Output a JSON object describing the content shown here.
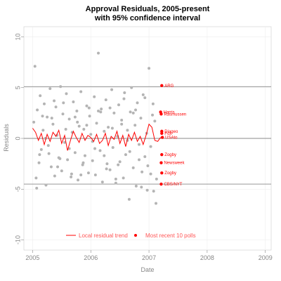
{
  "chart_data": {
    "type": "scatter",
    "title": "Approval Residuals, 2005-present",
    "subtitle": "with 95% confidence interval",
    "xlabel": "Date",
    "ylabel": "Residuals",
    "xlim": [
      2004.85,
      2009.1
    ],
    "ylim": [
      -11,
      11
    ],
    "x_ticks": [
      "2005",
      "2006",
      "2007",
      "2008",
      "2009"
    ],
    "y_ticks": [
      "10",
      "5",
      "0",
      "-5",
      "-10"
    ],
    "x_tick_values": [
      2005,
      2006,
      2007,
      2008,
      2009
    ],
    "y_tick_values": [
      10,
      5,
      0,
      -5,
      -10
    ],
    "confidence_lines": [
      5.1,
      0,
      -4.5
    ],
    "grid": true,
    "legend": {
      "position": "bottom-center",
      "entries": [
        {
          "label": "Local residual trend",
          "color": "#ff0000",
          "kind": "line"
        },
        {
          "label": "Most recent 10 polls",
          "color": "#ff0000",
          "kind": "point"
        }
      ]
    },
    "colors": {
      "residual_points": "#b4b4b4",
      "recent": "#ff0000",
      "ci_lines": "#888888",
      "grid": "#eeeeee"
    },
    "series": [
      {
        "name": "Local residual trend",
        "type": "line",
        "x": [
          2005.0,
          2005.05,
          2005.1,
          2005.15,
          2005.2,
          2005.25,
          2005.3,
          2005.35,
          2005.4,
          2005.45,
          2005.5,
          2005.55,
          2005.6,
          2005.65,
          2005.7,
          2005.75,
          2005.8,
          2005.85,
          2005.9,
          2005.95,
          2006.0,
          2006.05,
          2006.1,
          2006.15,
          2006.2,
          2006.25,
          2006.3,
          2006.35,
          2006.4,
          2006.45,
          2006.5,
          2006.55,
          2006.6,
          2006.65,
          2006.7,
          2006.75,
          2006.8,
          2006.85,
          2006.9,
          2006.95,
          2007.0,
          2007.05,
          2007.1,
          2007.15,
          2007.2
        ],
        "values": [
          1.0,
          0.6,
          -0.2,
          0.5,
          -0.6,
          0.4,
          -0.3,
          0.6,
          0.2,
          0.8,
          -0.5,
          0.3,
          -1.2,
          -0.2,
          0.7,
          0.1,
          -0.4,
          0.5,
          -0.2,
          0.3,
          0.1,
          -0.3,
          0.4,
          -0.5,
          -0.2,
          0.5,
          -0.7,
          0.2,
          -0.1,
          0.7,
          -0.5,
          0.3,
          -0.8,
          0.4,
          -0.2,
          0.6,
          -0.3,
          0.2,
          -0.6,
          0.3,
          1.4,
          1.1,
          -0.2,
          -0.3,
          0.1
        ]
      },
      {
        "name": "Most recent 10 polls",
        "type": "scatter",
        "labels": [
          "ARG",
          "Harris",
          "Rasmussen",
          "Diageo",
          "USAto",
          "Zogby",
          "Newsweek",
          "Zogby",
          "CBS/NYT",
          "Fox"
        ],
        "x": [
          2007.22,
          2007.2,
          2007.21,
          2007.22,
          2007.23,
          2007.22,
          2007.21,
          2007.22,
          2007.21,
          2007.22
        ],
        "values": [
          5.2,
          2.6,
          2.4,
          0.7,
          0.1,
          -1.6,
          -2.4,
          -3.4,
          -4.5,
          0.5
        ]
      },
      {
        "name": "",
        "type": "scatter",
        "x": [
          2005.02,
          2005.04,
          2005.06,
          2005.08,
          2005.11,
          2005.13,
          2005.15,
          2005.18,
          2005.2,
          2005.23,
          2005.25,
          2005.27,
          2005.3,
          2005.32,
          2005.35,
          2005.38,
          2005.4,
          2005.42,
          2005.45,
          2005.48,
          2005.5,
          2005.52,
          2005.55,
          2005.58,
          2005.6,
          2005.63,
          2005.66,
          2005.68,
          2005.7,
          2005.73,
          2005.76,
          2005.78,
          2005.8,
          2005.83,
          2005.86,
          2005.88,
          2005.9,
          2005.93,
          2005.96,
          2005.98,
          2006.0,
          2006.03,
          2006.06,
          2006.08,
          2006.1,
          2006.13,
          2006.16,
          2006.18,
          2006.2,
          2006.23,
          2006.26,
          2006.28,
          2006.3,
          2006.33,
          2006.36,
          2006.38,
          2006.4,
          2006.43,
          2006.46,
          2006.48,
          2006.5,
          2006.53,
          2006.56,
          2006.58,
          2006.6,
          2006.63,
          2006.66,
          2006.68,
          2006.7,
          2006.73,
          2006.76,
          2006.78,
          2006.8,
          2006.83,
          2006.86,
          2006.88,
          2006.9,
          2006.93,
          2006.96,
          2006.98,
          2007.0,
          2007.03,
          2007.06,
          2007.08,
          2007.1,
          2007.13,
          2005.07,
          2005.17,
          2005.28,
          2005.37,
          2005.47,
          2005.57,
          2005.67,
          2005.77,
          2005.87,
          2005.97,
          2006.07,
          2006.17,
          2006.27,
          2006.37,
          2006.47,
          2006.57,
          2006.67,
          2006.77,
          2006.87,
          2006.97,
          2007.07,
          2005.12,
          2005.22,
          2005.33,
          2005.43,
          2005.53,
          2005.63,
          2005.73,
          2005.83,
          2005.93,
          2006.03,
          2006.13,
          2006.23,
          2006.33,
          2006.43,
          2006.53,
          2006.63,
          2006.73,
          2006.83,
          2006.93,
          2007.03,
          2007.12
        ],
        "values": [
          1.6,
          7.1,
          -3.9,
          2.8,
          -2.4,
          4.2,
          -1.1,
          0.8,
          3.4,
          -4.6,
          2.1,
          -0.7,
          4.9,
          -2.8,
          1.4,
          -3.7,
          3.1,
          0.3,
          -1.9,
          5.1,
          -3.2,
          2.4,
          -0.4,
          4.4,
          -2.1,
          1.9,
          -3.8,
          0.6,
          3.6,
          -1.4,
          2.7,
          -4.1,
          1.2,
          4.6,
          -2.6,
          0.9,
          -1.7,
          3.2,
          -3.4,
          2.2,
          0.4,
          -2.2,
          4.1,
          -3.6,
          1.5,
          8.4,
          -1.2,
          2.9,
          -4.3,
          0.7,
          3.8,
          -2.5,
          1.1,
          -3.1,
          4.8,
          -0.9,
          2.5,
          -4.4,
          0.2,
          3.3,
          -2.3,
          1.8,
          -3.9,
          4.5,
          -1.6,
          0.8,
          -6.0,
          2.6,
          5.0,
          -2.9,
          1.3,
          -4.7,
          3.5,
          -0.6,
          2.0,
          -3.3,
          4.3,
          -1.8,
          0.5,
          -2.7,
          6.9,
          -3.5,
          2.3,
          -5.2,
          1.7,
          -4.0,
          -4.9,
          2.2,
          -1.5,
          3.7,
          -2.0,
          0.9,
          -3.5,
          1.6,
          -2.4,
          3.0,
          -1.0,
          2.6,
          -3.0,
          1.0,
          -2.6,
          3.9,
          -1.3,
          2.8,
          -4.8,
          -5.1,
          3.4,
          -1.6,
          0.0,
          2.0,
          -2.8,
          3.5,
          -1.0,
          2.1,
          -3.6,
          1.3,
          -0.3,
          2.7,
          -1.7,
          3.0,
          -4.0,
          1.4,
          -0.2,
          2.5,
          -2.1,
          4.0,
          -0.8,
          -6.4
        ]
      }
    ]
  }
}
